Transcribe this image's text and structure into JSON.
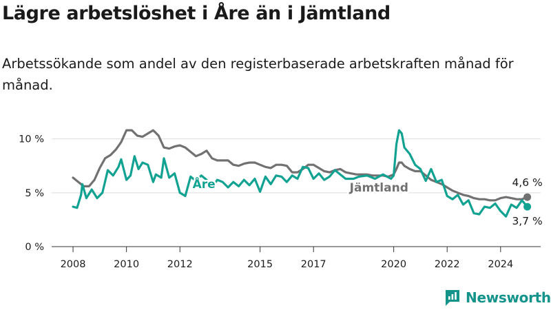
{
  "page": {
    "title": "Lägre arbetslöshet i Åre än i Jämtland",
    "subtitle": "Arbetssökande som andel av den registerbaserade arbetskraften månad för månad.",
    "brand": "Newsworthy"
  },
  "colors": {
    "are": "#11a291",
    "jamtland": "#717171",
    "text": "#1a1a1a",
    "grid": "#dddddd",
    "brand": "#14938a"
  },
  "chart_data": {
    "type": "line",
    "x_range": [
      2007.2,
      2025.5
    ],
    "ylim": [
      0,
      11
    ],
    "y_ticks": [
      {
        "value": 0,
        "label": "0 %"
      },
      {
        "value": 5,
        "label": "5 %"
      },
      {
        "value": 10,
        "label": "10 %"
      }
    ],
    "x_ticks": [
      {
        "value": 2008,
        "label": "2008"
      },
      {
        "value": 2010,
        "label": "2010"
      },
      {
        "value": 2012,
        "label": "2012"
      },
      {
        "value": 2015,
        "label": "2015"
      },
      {
        "value": 2017,
        "label": "2017"
      },
      {
        "value": 2020,
        "label": "2020"
      },
      {
        "value": 2022,
        "label": "2022"
      },
      {
        "value": 2024,
        "label": "2024"
      }
    ],
    "grid": "horizontal",
    "series": [
      {
        "name": "Jämtland",
        "color": "#717171",
        "label_at": 2019.45,
        "end_label": "4,6 %",
        "points": [
          [
            2008.0,
            6.4
          ],
          [
            2008.2,
            6.0
          ],
          [
            2008.4,
            5.6
          ],
          [
            2008.6,
            5.6
          ],
          [
            2008.8,
            6.2
          ],
          [
            2009.0,
            7.3
          ],
          [
            2009.2,
            8.2
          ],
          [
            2009.4,
            8.5
          ],
          [
            2009.6,
            9.0
          ],
          [
            2009.8,
            9.7
          ],
          [
            2010.0,
            10.8
          ],
          [
            2010.2,
            10.8
          ],
          [
            2010.4,
            10.3
          ],
          [
            2010.6,
            10.2
          ],
          [
            2010.8,
            10.5
          ],
          [
            2011.0,
            10.8
          ],
          [
            2011.2,
            10.3
          ],
          [
            2011.4,
            9.2
          ],
          [
            2011.6,
            9.1
          ],
          [
            2011.8,
            9.3
          ],
          [
            2012.0,
            9.4
          ],
          [
            2012.2,
            9.2
          ],
          [
            2012.4,
            8.8
          ],
          [
            2012.6,
            8.4
          ],
          [
            2012.8,
            8.6
          ],
          [
            2013.0,
            8.9
          ],
          [
            2013.2,
            8.2
          ],
          [
            2013.4,
            8.0
          ],
          [
            2013.6,
            8.0
          ],
          [
            2013.8,
            8.0
          ],
          [
            2014.0,
            7.6
          ],
          [
            2014.2,
            7.5
          ],
          [
            2014.4,
            7.7
          ],
          [
            2014.6,
            7.8
          ],
          [
            2014.8,
            7.8
          ],
          [
            2015.0,
            7.6
          ],
          [
            2015.2,
            7.4
          ],
          [
            2015.4,
            7.3
          ],
          [
            2015.6,
            7.6
          ],
          [
            2015.8,
            7.6
          ],
          [
            2016.0,
            7.5
          ],
          [
            2016.2,
            6.9
          ],
          [
            2016.4,
            6.9
          ],
          [
            2016.6,
            7.2
          ],
          [
            2016.8,
            7.6
          ],
          [
            2017.0,
            7.6
          ],
          [
            2017.2,
            7.3
          ],
          [
            2017.4,
            7.0
          ],
          [
            2017.6,
            6.9
          ],
          [
            2017.8,
            7.1
          ],
          [
            2018.0,
            7.2
          ],
          [
            2018.2,
            6.9
          ],
          [
            2018.4,
            6.8
          ],
          [
            2018.6,
            6.7
          ],
          [
            2018.8,
            6.7
          ],
          [
            2019.0,
            6.7
          ],
          [
            2019.2,
            6.6
          ],
          [
            2019.4,
            6.6
          ],
          [
            2019.6,
            6.6
          ],
          [
            2019.8,
            6.5
          ],
          [
            2020.0,
            6.7
          ],
          [
            2020.1,
            7.2
          ],
          [
            2020.2,
            7.8
          ],
          [
            2020.3,
            7.8
          ],
          [
            2020.4,
            7.5
          ],
          [
            2020.6,
            7.2
          ],
          [
            2020.8,
            7.0
          ],
          [
            2021.0,
            7.0
          ],
          [
            2021.2,
            6.6
          ],
          [
            2021.4,
            6.2
          ],
          [
            2021.6,
            6.0
          ],
          [
            2021.8,
            5.8
          ],
          [
            2022.0,
            5.5
          ],
          [
            2022.2,
            5.2
          ],
          [
            2022.4,
            5.0
          ],
          [
            2022.6,
            4.8
          ],
          [
            2022.8,
            4.7
          ],
          [
            2023.0,
            4.5
          ],
          [
            2023.2,
            4.4
          ],
          [
            2023.4,
            4.4
          ],
          [
            2023.6,
            4.3
          ],
          [
            2023.8,
            4.3
          ],
          [
            2024.0,
            4.5
          ],
          [
            2024.2,
            4.6
          ],
          [
            2024.4,
            4.5
          ],
          [
            2024.6,
            4.4
          ],
          [
            2024.8,
            4.4
          ],
          [
            2025.0,
            4.6
          ]
        ]
      },
      {
        "name": "Åre",
        "color": "#11a291",
        "label_at": 2012.9,
        "end_label": "3,7 %",
        "points": [
          [
            2008.0,
            3.7
          ],
          [
            2008.15,
            3.6
          ],
          [
            2008.3,
            4.8
          ],
          [
            2008.35,
            5.8
          ],
          [
            2008.5,
            4.5
          ],
          [
            2008.7,
            5.3
          ],
          [
            2008.9,
            4.5
          ],
          [
            2009.1,
            5.0
          ],
          [
            2009.3,
            7.1
          ],
          [
            2009.5,
            6.6
          ],
          [
            2009.7,
            7.4
          ],
          [
            2009.8,
            8.1
          ],
          [
            2010.0,
            6.2
          ],
          [
            2010.15,
            6.6
          ],
          [
            2010.3,
            8.4
          ],
          [
            2010.45,
            7.2
          ],
          [
            2010.6,
            7.8
          ],
          [
            2010.8,
            7.6
          ],
          [
            2011.0,
            6.0
          ],
          [
            2011.1,
            6.7
          ],
          [
            2011.3,
            6.4
          ],
          [
            2011.4,
            8.2
          ],
          [
            2011.6,
            6.4
          ],
          [
            2011.8,
            6.8
          ],
          [
            2012.0,
            5.0
          ],
          [
            2012.2,
            4.7
          ],
          [
            2012.4,
            6.5
          ],
          [
            2012.6,
            6.1
          ],
          [
            2012.8,
            6.6
          ],
          [
            2013.0,
            6.2
          ],
          [
            2013.2,
            5.5
          ],
          [
            2013.4,
            6.2
          ],
          [
            2013.6,
            6.0
          ],
          [
            2013.8,
            5.5
          ],
          [
            2014.0,
            6.0
          ],
          [
            2014.2,
            5.6
          ],
          [
            2014.4,
            6.2
          ],
          [
            2014.6,
            5.7
          ],
          [
            2014.8,
            6.3
          ],
          [
            2015.0,
            5.1
          ],
          [
            2015.2,
            6.5
          ],
          [
            2015.4,
            5.8
          ],
          [
            2015.6,
            6.6
          ],
          [
            2015.8,
            6.5
          ],
          [
            2016.0,
            6.0
          ],
          [
            2016.2,
            6.6
          ],
          [
            2016.4,
            6.3
          ],
          [
            2016.6,
            7.4
          ],
          [
            2016.8,
            7.3
          ],
          [
            2017.0,
            6.3
          ],
          [
            2017.2,
            6.8
          ],
          [
            2017.4,
            6.2
          ],
          [
            2017.6,
            6.5
          ],
          [
            2017.8,
            7.1
          ],
          [
            2018.0,
            6.7
          ],
          [
            2018.2,
            6.3
          ],
          [
            2018.5,
            6.3
          ],
          [
            2018.7,
            6.5
          ],
          [
            2019.0,
            6.6
          ],
          [
            2019.3,
            6.3
          ],
          [
            2019.6,
            6.7
          ],
          [
            2019.9,
            6.3
          ],
          [
            2020.0,
            6.6
          ],
          [
            2020.1,
            9.5
          ],
          [
            2020.2,
            10.8
          ],
          [
            2020.3,
            10.5
          ],
          [
            2020.4,
            9.2
          ],
          [
            2020.6,
            8.6
          ],
          [
            2020.8,
            7.6
          ],
          [
            2021.0,
            7.2
          ],
          [
            2021.2,
            6.1
          ],
          [
            2021.4,
            7.2
          ],
          [
            2021.6,
            6.0
          ],
          [
            2021.8,
            6.2
          ],
          [
            2022.0,
            4.7
          ],
          [
            2022.2,
            4.4
          ],
          [
            2022.4,
            4.8
          ],
          [
            2022.6,
            3.9
          ],
          [
            2022.8,
            4.3
          ],
          [
            2023.0,
            3.1
          ],
          [
            2023.2,
            3.0
          ],
          [
            2023.4,
            3.7
          ],
          [
            2023.6,
            3.6
          ],
          [
            2023.8,
            4.0
          ],
          [
            2024.0,
            3.3
          ],
          [
            2024.2,
            2.8
          ],
          [
            2024.4,
            3.9
          ],
          [
            2024.6,
            3.6
          ],
          [
            2024.8,
            4.3
          ],
          [
            2025.0,
            3.7
          ]
        ]
      }
    ]
  }
}
